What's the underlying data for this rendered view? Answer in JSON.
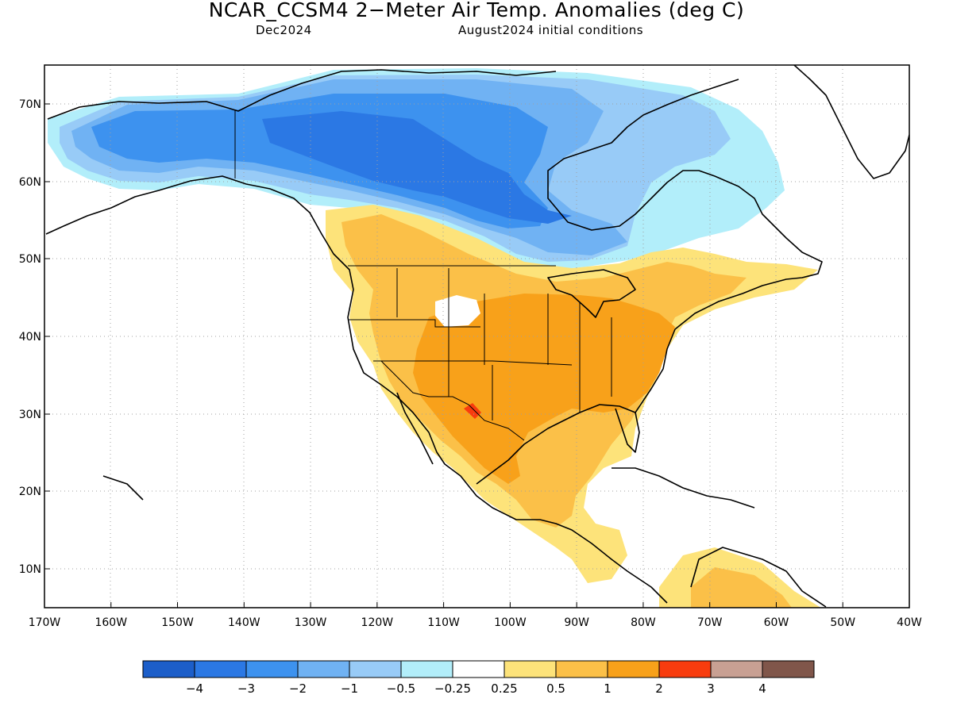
{
  "title": "NCAR_CCSM4 2−Meter Air Temp. Anomalies (deg C)",
  "subtitle_left": "Dec2024",
  "subtitle_right": "August2024 initial conditions",
  "lat_labels": [
    "70N",
    "60N",
    "50N",
    "40N",
    "30N",
    "20N",
    "10N"
  ],
  "lon_labels": [
    "170W",
    "160W",
    "150W",
    "140W",
    "130W",
    "120W",
    "110W",
    "100W",
    "90W",
    "80W",
    "70W",
    "60W",
    "50W",
    "40W"
  ],
  "colorbar": {
    "colors": [
      "#1c5ec9",
      "#2b78e4",
      "#3d92ef",
      "#70b2f3",
      "#98cbf7",
      "#b2eefa",
      "#ffffff",
      "#fde37a",
      "#fbc048",
      "#f8a11a",
      "#f83c0e",
      "#c8a093",
      "#80564a"
    ],
    "labels": [
      "−4",
      "−3",
      "−2",
      "−1",
      "−0.5",
      "−0.25",
      "0.25",
      "0.5",
      "1",
      "2",
      "3",
      "4"
    ]
  }
}
